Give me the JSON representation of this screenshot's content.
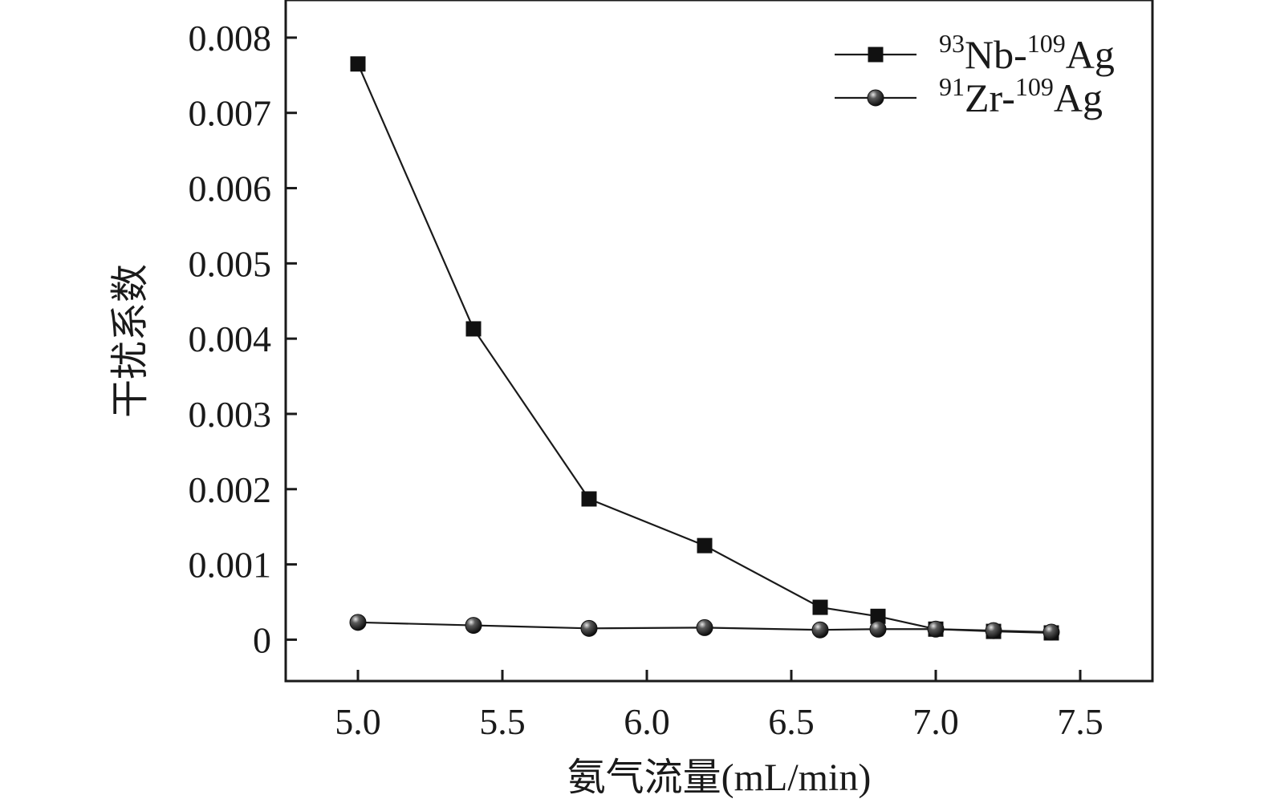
{
  "chart_data": {
    "type": "line",
    "xlabel": "氨气流量(mL/min)",
    "ylabel": "干扰系数",
    "xlim": [
      4.75,
      7.75
    ],
    "ylim": [
      -0.00055,
      0.0085
    ],
    "xticks": [
      5.0,
      5.5,
      6.0,
      6.5,
      7.0,
      7.5
    ],
    "xtick_labels": [
      "5.0",
      "5.5",
      "6.0",
      "6.5",
      "7.0",
      "7.5"
    ],
    "yticks": [
      0,
      0.001,
      0.002,
      0.003,
      0.004,
      0.005,
      0.006,
      0.007,
      0.008
    ],
    "ytick_labels": [
      "0",
      "0.001",
      "0.002",
      "0.003",
      "0.004",
      "0.005",
      "0.006",
      "0.007",
      "0.008"
    ],
    "x": [
      5.0,
      5.4,
      5.8,
      6.2,
      6.6,
      6.8,
      7.0,
      7.2,
      7.4
    ],
    "series": [
      {
        "name": "93Nb-109Ag",
        "legend": {
          "sup1": "93",
          "main1": "Nb-",
          "sup2": "109",
          "main2": "Ag"
        },
        "marker": "square",
        "values": [
          0.00765,
          0.00413,
          0.00187,
          0.00125,
          0.00043,
          0.00031,
          0.00014,
          0.00011,
          9e-05
        ]
      },
      {
        "name": "91Zr-109Ag",
        "legend": {
          "sup1": "91",
          "main1": "Zr-",
          "sup2": "109",
          "main2": "Ag"
        },
        "marker": "sphere",
        "values": [
          0.00023,
          0.00019,
          0.00015,
          0.00016,
          0.00013,
          0.00014,
          0.00014,
          0.00012,
          0.0001
        ]
      }
    ],
    "legend_position": "top-right",
    "grid": false
  }
}
